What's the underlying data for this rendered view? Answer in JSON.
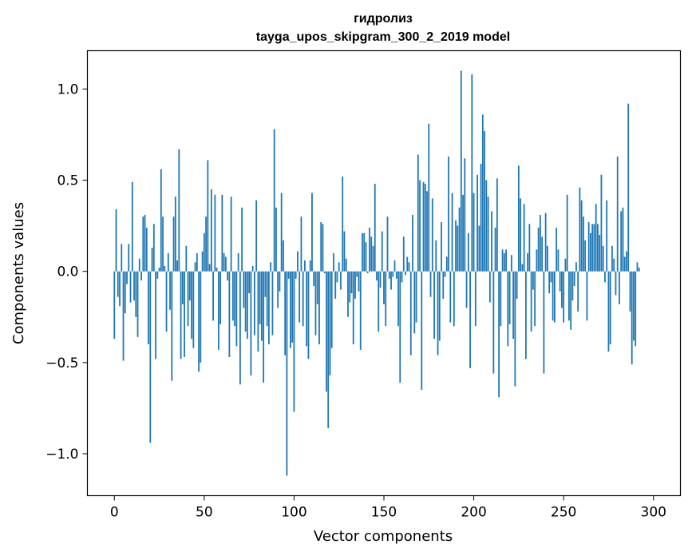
{
  "chart_data": {
    "type": "bar",
    "title": "гидролиз",
    "subtitle": "tayga_upos_skipgram_300_2_2019 model",
    "xlabel": "Vector components",
    "ylabel": "Components values",
    "xlim": [
      -15,
      315
    ],
    "ylim": [
      -1.23,
      1.21
    ],
    "xticks": [
      0,
      50,
      100,
      150,
      200,
      250,
      300
    ],
    "xtick_labels": [
      "0",
      "50",
      "100",
      "150",
      "200",
      "250",
      "300"
    ],
    "yticks": [
      -1.0,
      -0.5,
      0.0,
      0.5,
      1.0
    ],
    "ytick_labels": [
      "−1.0",
      "−0.5",
      "0.0",
      "0.5",
      "1.0"
    ],
    "grid": false,
    "bar_color": "#1f77b4",
    "values": [
      -0.37,
      0.34,
      -0.14,
      -0.19,
      0.15,
      -0.49,
      -0.23,
      -0.07,
      0.15,
      -0.17,
      0.49,
      -0.16,
      -0.25,
      -0.36,
      0.07,
      -0.05,
      0.3,
      0.31,
      0.24,
      -0.4,
      -0.94,
      0.13,
      0.26,
      -0.48,
      -0.04,
      0.02,
      0.56,
      0.3,
      0.03,
      -0.33,
      0.1,
      -0.21,
      -0.6,
      0.3,
      0.41,
      0.06,
      0.67,
      -0.48,
      -0.18,
      -0.47,
      0.14,
      -0.3,
      -0.16,
      -0.37,
      -0.42,
      0.05,
      0.1,
      -0.55,
      -0.5,
      0.11,
      0.21,
      0.3,
      0.61,
      0.04,
      0.45,
      -0.27,
      0.42,
      0.02,
      -0.43,
      -0.29,
      0.42,
      0.1,
      0.08,
      -0.05,
      -0.47,
      0.41,
      -0.27,
      -0.3,
      -0.41,
      0.1,
      -0.62,
      0.35,
      -0.2,
      -0.33,
      -0.37,
      -0.12,
      -0.57,
      0.03,
      -0.35,
      0.39,
      -0.44,
      -0.29,
      -0.38,
      -0.61,
      -0.14,
      -0.3,
      -0.4,
      0.05,
      -0.35,
      0.78,
      0.35,
      -0.2,
      -0.11,
      0.43,
      0.17,
      -0.46,
      -1.12,
      -0.04,
      -0.42,
      -0.39,
      -0.77,
      -0.04,
      0.11,
      -0.28,
      0.3,
      -0.3,
      0.06,
      -0.41,
      -0.48,
      0.06,
      0.43,
      -0.08,
      -0.35,
      -0.18,
      -0.4,
      0.27,
      0.26,
      -0.01,
      -0.66,
      -0.86,
      -0.57,
      -0.42,
      0.1,
      -0.15,
      -0.06,
      0.05,
      -0.1,
      0.52,
      0.22,
      0.07,
      -0.25,
      -0.17,
      -0.12,
      -0.4,
      -0.15,
      -0.03,
      -0.11,
      -0.43,
      0.21,
      0.21,
      0.16,
      -0.01,
      0.24,
      0.19,
      0.14,
      0.48,
      -0.05,
      -0.33,
      -0.09,
      0.22,
      -0.18,
      -0.3,
      0.3,
      -0.04,
      -0.1,
      -0.03,
      0.06,
      -0.04,
      -0.3,
      -0.61,
      -0.06,
      0.19,
      -0.02,
      0.08,
      0.05,
      -0.46,
      0.31,
      -0.34,
      -0.28,
      0.64,
      0.5,
      -0.65,
      0.49,
      0.48,
      0.44,
      0.81,
      -0.14,
      0.4,
      -0.37,
      0.17,
      -0.46,
      -0.38,
      0.27,
      -0.15,
      -0.03,
      0.08,
      0.63,
      -0.28,
      0.43,
      -0.3,
      0.28,
      0.25,
      0.35,
      1.1,
      0.42,
      0.62,
      -0.2,
      0.21,
      -0.53,
      1.08,
      0.43,
      -0.3,
      0.53,
      0.25,
      0.59,
      0.86,
      0.77,
      0.5,
      0.41,
      -0.17,
      0.33,
      -0.56,
      0.24,
      0.51,
      -0.69,
      -0.3,
      0.12,
      0.1,
      0.12,
      -0.41,
      -0.29,
      0.09,
      -0.37,
      -0.63,
      -0.15,
      0.58,
      0.4,
      0.04,
      0.37,
      -0.48,
      0.1,
      0.26,
      -0.33,
      -0.1,
      -0.3,
      0.12,
      0.24,
      0.31,
      0.19,
      -0.56,
      0.32,
      0.14,
      -0.12,
      -0.06,
      -0.27,
      -0.28,
      0.24,
      0.12,
      -0.11,
      -0.2,
      -0.28,
      0.07,
      0.42,
      -0.27,
      -0.32,
      -0.16,
      -0.08,
      0.05,
      -0.22,
      0.46,
      0.39,
      0.3,
      0.17,
      -0.27,
      0.27,
      0.21,
      0.26,
      0.26,
      0.37,
      0.26,
      0.2,
      0.53,
      0.14,
      -0.06,
      0.39,
      -0.44,
      -0.4,
      0.14,
      0.07,
      -0.13,
      0.63,
      -0.18,
      0.33,
      0.35,
      0.08,
      0.11,
      0.92,
      -0.22,
      -0.51,
      -0.38,
      -0.41,
      0.05,
      0.02
    ]
  }
}
